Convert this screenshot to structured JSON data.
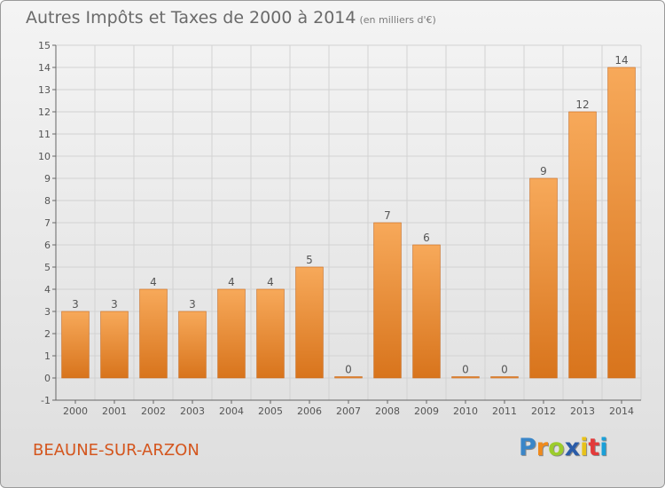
{
  "header": {
    "title": "Autres Impôts et Taxes de 2000 à 2014",
    "subtitle": "(en milliers d'€)"
  },
  "footer": {
    "place": "BEAUNE-SUR-ARZON",
    "logo_letters": [
      "P",
      "r",
      "o",
      "x",
      "i",
      "t",
      "i"
    ],
    "logo_colors": [
      "#3a86c8",
      "#f08a1c",
      "#9ccc2c",
      "#2a5ca8",
      "#e8c21a",
      "#e33a3a",
      "#1aa0d8"
    ]
  },
  "colors": {
    "bar_top": "#f7a95a",
    "bar_bottom": "#d8741c",
    "bar_edge": "#c8681a",
    "grid": "#d2d2d2",
    "axis": "#666666",
    "text": "#555555"
  },
  "chart_data": {
    "type": "bar",
    "categories": [
      "2000",
      "2001",
      "2002",
      "2003",
      "2004",
      "2005",
      "2006",
      "2007",
      "2008",
      "2009",
      "2010",
      "2011",
      "2012",
      "2013",
      "2014"
    ],
    "values": [
      3,
      3,
      4,
      3,
      4,
      4,
      5,
      0,
      7,
      6,
      0,
      0,
      9,
      12,
      14
    ],
    "ylim": [
      -1,
      15
    ],
    "y_ticks": [
      -1,
      0,
      1,
      2,
      3,
      4,
      5,
      6,
      7,
      8,
      9,
      10,
      11,
      12,
      13,
      14,
      15
    ],
    "grid": true,
    "legend": "none"
  }
}
